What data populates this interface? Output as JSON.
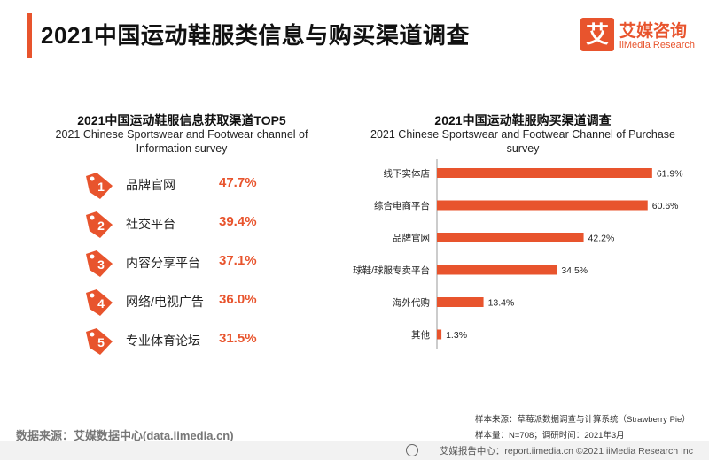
{
  "page_title": "2021中国运动鞋服类信息与购买渠道调查",
  "logo": {
    "mark": "艾",
    "cn": "艾媒咨询",
    "en": "iiMedia Research"
  },
  "left_panel": {
    "title_cn": "2021中国运动鞋服信息获取渠道TOP5",
    "title_en": "2021 Chinese Sportswear and Footwear channel of Information survey",
    "items": [
      {
        "rank": "1",
        "label": "品牌官网",
        "value": "47.7%"
      },
      {
        "rank": "2",
        "label": "社交平台",
        "value": "39.4%"
      },
      {
        "rank": "3",
        "label": "内容分享平台",
        "value": "37.1%"
      },
      {
        "rank": "4",
        "label": "网络/电视广告",
        "value": "36.0%"
      },
      {
        "rank": "5",
        "label": "专业体育论坛",
        "value": "31.5%"
      }
    ]
  },
  "chart_data": {
    "type": "bar",
    "orientation": "horizontal",
    "title": "2021中国运动鞋服购买渠道调查",
    "subtitle": "2021 Chinese Sportswear and Footwear Channel of Purchase survey",
    "categories": [
      "线下实体店",
      "综合电商平台",
      "品牌官网",
      "球鞋/球服专卖平台",
      "海外代购",
      "其他"
    ],
    "values": [
      61.9,
      60.6,
      42.2,
      34.5,
      13.4,
      1.3
    ],
    "value_labels": [
      "61.9%",
      "60.6%",
      "42.2%",
      "34.5%",
      "13.4%",
      "1.3%"
    ],
    "xlim": [
      0,
      65
    ],
    "bar_color": "#e8542d",
    "grid": false
  },
  "source_left": "数据来源：艾媒数据中心(data.iimedia.cn)",
  "notes": {
    "line1": "样本来源：草莓派数据调查与计算系统（Strawberry Pie）",
    "line2": "样本量：N=708；调研时间：2021年3月"
  },
  "footer": "艾媒报告中心：report.iimedia.cn  ©2021  iiMedia Research  Inc",
  "colors": {
    "accent": "#e8542d"
  }
}
